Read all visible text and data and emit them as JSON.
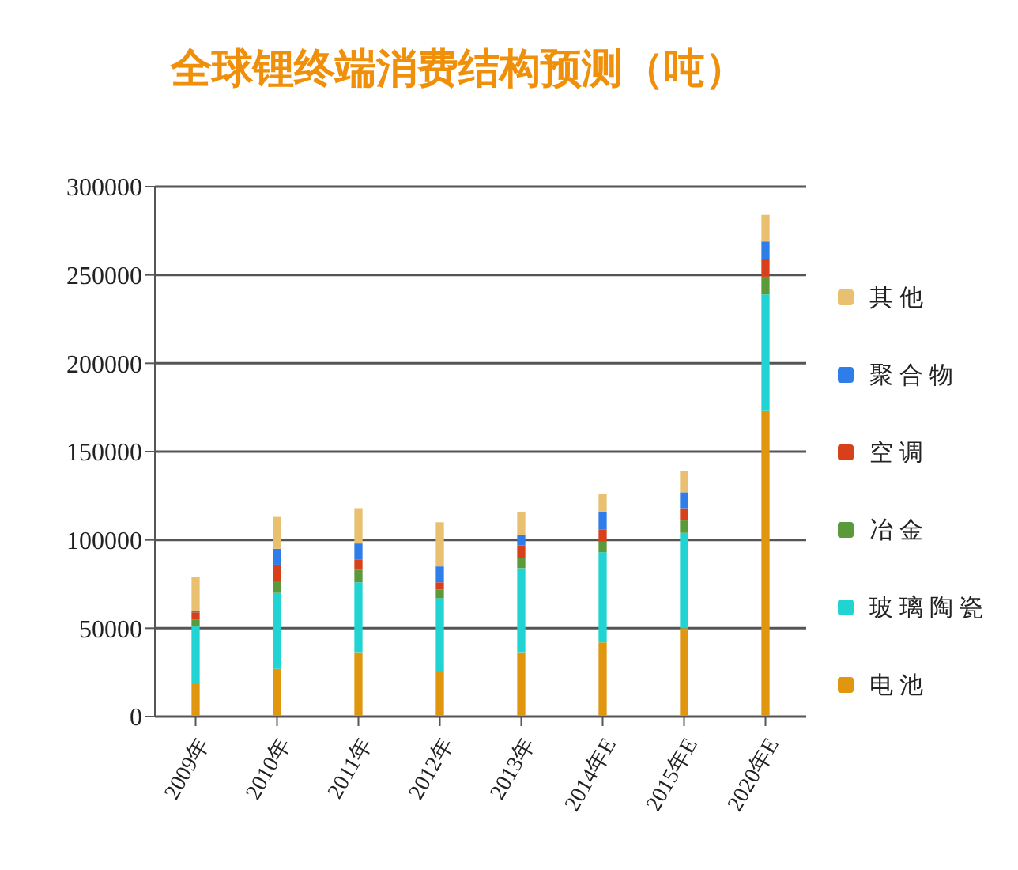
{
  "chart_data": {
    "type": "bar",
    "title": "全球锂终端消费结构预测（吨）",
    "stacked": true,
    "categories": [
      "2009年",
      "2010年",
      "2011年",
      "2012年",
      "2013年",
      "2014年E",
      "2015年E",
      "2020年E"
    ],
    "series": [
      {
        "name": "电池",
        "color": "#e0960f",
        "values": [
          19000,
          27000,
          36000,
          26000,
          36000,
          42000,
          50000,
          173000
        ]
      },
      {
        "name": "玻璃陶瓷",
        "color": "#22d3d3",
        "values": [
          32000,
          43000,
          40000,
          41000,
          48000,
          51000,
          54000,
          66000
        ]
      },
      {
        "name": "冶金",
        "color": "#5a9a3a",
        "values": [
          4000,
          7000,
          7000,
          5000,
          6000,
          6000,
          7000,
          10000
        ]
      },
      {
        "name": "空调",
        "color": "#d8401a",
        "values": [
          4000,
          9000,
          6000,
          4000,
          7000,
          7000,
          7000,
          10000
        ]
      },
      {
        "name": "聚合物",
        "color": "#2f7de8",
        "values": [
          1000,
          9000,
          9000,
          9000,
          6000,
          10000,
          9000,
          10000
        ]
      },
      {
        "name": "其他",
        "color": "#e8c070",
        "values": [
          19000,
          18000,
          20000,
          25000,
          13000,
          10000,
          12000,
          15000
        ]
      }
    ],
    "ylim": [
      0,
      300000
    ],
    "yticks": [
      0,
      50000,
      100000,
      150000,
      200000,
      250000,
      300000
    ],
    "grid": "y",
    "legend": "right"
  }
}
